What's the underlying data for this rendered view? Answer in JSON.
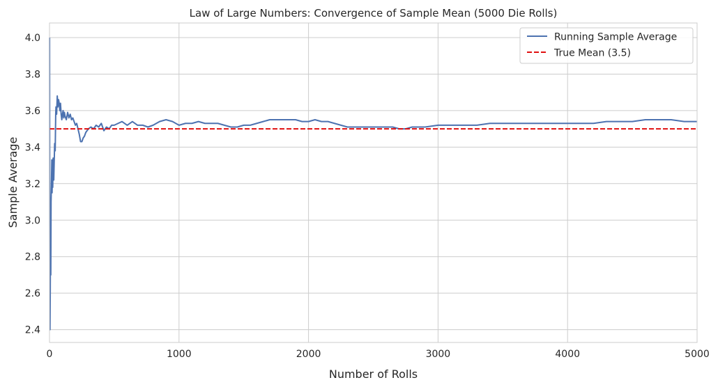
{
  "chart_data": {
    "type": "line",
    "title": "Law of Large Numbers: Convergence of Sample Mean (5000 Die Rolls)",
    "xlabel": "Number of Rolls",
    "ylabel": "Sample Average",
    "xlim": [
      0,
      5000
    ],
    "ylim": [
      2.33,
      4.08
    ],
    "grid": true,
    "legend_position": "top-right",
    "x_ticks": [
      0,
      1000,
      2000,
      3000,
      4000,
      5000
    ],
    "y_ticks": [
      2.4,
      2.6,
      2.8,
      3.0,
      3.2,
      3.4,
      3.6,
      3.8,
      4.0
    ],
    "x_tick_labels": [
      "0",
      "1000",
      "2000",
      "3000",
      "4000",
      "5000"
    ],
    "y_tick_labels": [
      "2.4",
      "2.6",
      "2.8",
      "3.0",
      "3.2",
      "3.4",
      "3.6",
      "3.8",
      "4.0"
    ],
    "series": [
      {
        "name": "Running Sample Average",
        "color": "#4c72b0",
        "style": "solid",
        "x": [
          1,
          2,
          3,
          4,
          6,
          8,
          10,
          12,
          15,
          18,
          20,
          22,
          25,
          28,
          30,
          33,
          36,
          40,
          44,
          48,
          50,
          55,
          60,
          65,
          70,
          75,
          80,
          85,
          90,
          95,
          100,
          105,
          110,
          115,
          120,
          130,
          140,
          150,
          160,
          170,
          180,
          190,
          200,
          210,
          220,
          230,
          240,
          250,
          260,
          270,
          280,
          290,
          300,
          320,
          340,
          360,
          380,
          400,
          420,
          440,
          460,
          480,
          500,
          530,
          560,
          600,
          640,
          680,
          720,
          760,
          800,
          850,
          900,
          950,
          1000,
          1050,
          1100,
          1150,
          1200,
          1250,
          1300,
          1350,
          1400,
          1450,
          1500,
          1550,
          1600,
          1650,
          1700,
          1750,
          1800,
          1850,
          1900,
          1950,
          2000,
          2050,
          2100,
          2150,
          2200,
          2250,
          2300,
          2350,
          2400,
          2450,
          2500,
          2550,
          2600,
          2650,
          2700,
          2750,
          2800,
          2900,
          3000,
          3100,
          3200,
          3300,
          3400,
          3500,
          3600,
          3700,
          3800,
          3900,
          4000,
          4100,
          4200,
          4300,
          4400,
          4500,
          4600,
          4700,
          4800,
          4900,
          5000
        ],
        "values": [
          4.0,
          3.0,
          2.67,
          2.4,
          2.63,
          3.0,
          2.7,
          3.1,
          3.2,
          3.33,
          3.15,
          3.25,
          3.18,
          3.34,
          3.29,
          3.22,
          3.31,
          3.42,
          3.38,
          3.58,
          3.62,
          3.58,
          3.68,
          3.62,
          3.66,
          3.64,
          3.6,
          3.64,
          3.58,
          3.55,
          3.58,
          3.6,
          3.56,
          3.59,
          3.57,
          3.55,
          3.59,
          3.56,
          3.58,
          3.55,
          3.56,
          3.54,
          3.52,
          3.53,
          3.5,
          3.47,
          3.43,
          3.43,
          3.45,
          3.46,
          3.48,
          3.49,
          3.5,
          3.51,
          3.5,
          3.52,
          3.51,
          3.53,
          3.49,
          3.51,
          3.5,
          3.52,
          3.52,
          3.53,
          3.54,
          3.52,
          3.54,
          3.52,
          3.52,
          3.51,
          3.52,
          3.54,
          3.55,
          3.54,
          3.52,
          3.53,
          3.53,
          3.54,
          3.53,
          3.53,
          3.53,
          3.52,
          3.51,
          3.51,
          3.52,
          3.52,
          3.53,
          3.54,
          3.55,
          3.55,
          3.55,
          3.55,
          3.55,
          3.54,
          3.54,
          3.55,
          3.54,
          3.54,
          3.53,
          3.52,
          3.51,
          3.51,
          3.51,
          3.51,
          3.51,
          3.51,
          3.51,
          3.51,
          3.5,
          3.5,
          3.51,
          3.51,
          3.52,
          3.52,
          3.52,
          3.52,
          3.53,
          3.53,
          3.53,
          3.53,
          3.53,
          3.53,
          3.53,
          3.53,
          3.53,
          3.54,
          3.54,
          3.54,
          3.55,
          3.55,
          3.55,
          3.54,
          3.54
        ]
      },
      {
        "name": "True Mean (3.5)",
        "color": "#e01010",
        "style": "dashed",
        "x": [
          0,
          5000
        ],
        "values": [
          3.5,
          3.5
        ]
      }
    ]
  }
}
